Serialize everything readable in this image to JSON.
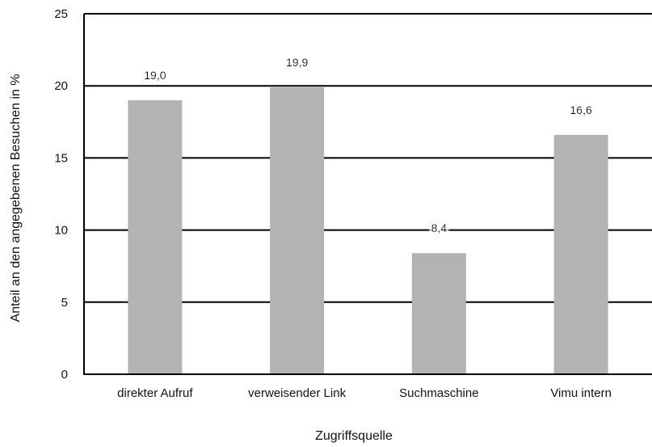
{
  "chart_data": {
    "type": "bar",
    "title": "",
    "xlabel": "Zugriffsquelle",
    "ylabel": "Anteil an den angegebenen Besuchen in %",
    "categories": [
      "direkter Aufruf",
      "verweisender Link",
      "Suchmaschine",
      "Vimu intern"
    ],
    "values": [
      19.0,
      19.9,
      8.4,
      16.6
    ],
    "value_labels": [
      "19,0",
      "19,9",
      "8,4",
      "16,6"
    ],
    "ylim": [
      0,
      25
    ],
    "yticks": [
      0,
      5,
      10,
      15,
      20,
      25
    ],
    "grid": true,
    "legend": "none",
    "colors": {
      "bar": "#b3b3b3",
      "grid": "#000000",
      "label_shadow": "#ffffff"
    }
  }
}
